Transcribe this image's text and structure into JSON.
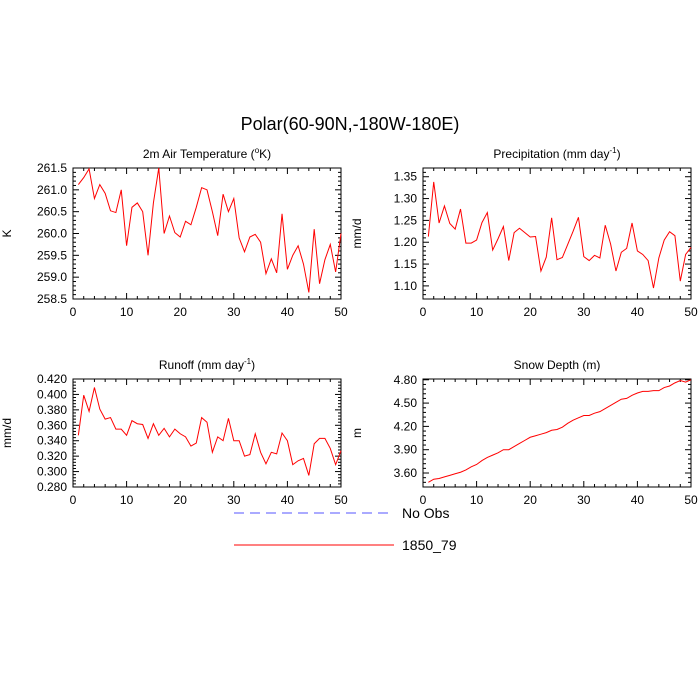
{
  "figure": {
    "title": "Polar(60-90N,-180W-180E)",
    "colors": {
      "series": "#ff0000",
      "obs": "#5555ff",
      "axis": "#000000"
    }
  },
  "legend": [
    {
      "label": "No Obs",
      "style": "dashed",
      "color": "#5555ff"
    },
    {
      "label": "1850_79",
      "style": "solid",
      "color": "#ff0000"
    }
  ],
  "chart_data": [
    {
      "type": "line",
      "title": "2m Air Temperature (°K)",
      "title_parts": {
        "pre": "2m Air Temperature (",
        "sup": "o",
        "post": "K)"
      },
      "xlabel": "",
      "ylabel": "K",
      "xlim": [
        0,
        50
      ],
      "ylim": [
        258.5,
        261.5
      ],
      "xticks": [
        0,
        10,
        20,
        30,
        40,
        50
      ],
      "yticks": [
        "258.5",
        "259.0",
        "259.5",
        "260.0",
        "260.5",
        "261.0",
        "261.5"
      ],
      "series": [
        {
          "name": "1850_79",
          "x": [
            1,
            2,
            3,
            4,
            5,
            6,
            7,
            8,
            9,
            10,
            11,
            12,
            13,
            14,
            15,
            16,
            17,
            18,
            19,
            20,
            21,
            22,
            23,
            24,
            25,
            26,
            27,
            28,
            29,
            30,
            31,
            32,
            33,
            34,
            35,
            36,
            37,
            38,
            39,
            40,
            41,
            42,
            43,
            44,
            45,
            46,
            47,
            48,
            49,
            50
          ],
          "values": [
            261.12,
            261.28,
            261.48,
            260.8,
            261.12,
            260.92,
            260.52,
            260.48,
            261.0,
            259.72,
            260.6,
            260.7,
            260.5,
            259.5,
            260.7,
            261.5,
            260.0,
            260.4,
            260.02,
            259.92,
            260.28,
            260.2,
            260.6,
            261.05,
            261.0,
            260.5,
            259.95,
            260.9,
            260.5,
            260.8,
            259.9,
            259.58,
            259.92,
            259.98,
            259.8,
            259.08,
            259.42,
            259.1,
            260.45,
            259.18,
            259.5,
            259.72,
            259.3,
            258.65,
            260.1,
            258.85,
            259.4,
            259.75,
            259.12,
            260.0
          ]
        }
      ]
    },
    {
      "type": "line",
      "title": "Precipitation (mm day-1)",
      "title_parts": {
        "pre": "Precipitation (mm day",
        "sup": "-1",
        "post": ")"
      },
      "xlabel": "",
      "ylabel": "mm/d",
      "xlim": [
        0,
        50
      ],
      "ylim": [
        1.07,
        1.37
      ],
      "xticks": [
        0,
        10,
        20,
        30,
        40,
        50
      ],
      "yticks": [
        "1.10",
        "1.15",
        "1.20",
        "1.25",
        "1.30",
        "1.35"
      ],
      "series": [
        {
          "name": "1850_79",
          "x": [
            1,
            2,
            3,
            4,
            5,
            6,
            7,
            8,
            9,
            10,
            11,
            12,
            13,
            14,
            15,
            16,
            17,
            18,
            19,
            20,
            21,
            22,
            23,
            24,
            25,
            26,
            27,
            28,
            29,
            30,
            31,
            32,
            33,
            34,
            35,
            36,
            37,
            38,
            39,
            40,
            41,
            42,
            43,
            44,
            45,
            46,
            47,
            48,
            49,
            50
          ],
          "values": [
            1.213,
            1.338,
            1.244,
            1.283,
            1.243,
            1.23,
            1.276,
            1.198,
            1.198,
            1.205,
            1.245,
            1.268,
            1.182,
            1.208,
            1.236,
            1.158,
            1.222,
            1.232,
            1.222,
            1.212,
            1.213,
            1.134,
            1.166,
            1.256,
            1.16,
            1.165,
            1.195,
            1.225,
            1.257,
            1.167,
            1.158,
            1.17,
            1.164,
            1.239,
            1.196,
            1.134,
            1.177,
            1.186,
            1.244,
            1.18,
            1.172,
            1.158,
            1.095,
            1.164,
            1.205,
            1.224,
            1.215,
            1.111,
            1.172,
            1.188
          ]
        }
      ]
    },
    {
      "type": "line",
      "title": "Runoff (mm day-1)",
      "title_parts": {
        "pre": "Runoff (mm day",
        "sup": "-1",
        "post": ")"
      },
      "xlabel": "",
      "ylabel": "mm/d",
      "xlim": [
        0,
        50
      ],
      "ylim": [
        0.28,
        0.42
      ],
      "xticks": [
        0,
        10,
        20,
        30,
        40,
        50
      ],
      "yticks": [
        "0.280",
        "0.300",
        "0.320",
        "0.340",
        "0.360",
        "0.380",
        "0.400",
        "0.420"
      ],
      "series": [
        {
          "name": "1850_79",
          "x": [
            1,
            2,
            3,
            4,
            5,
            6,
            7,
            8,
            9,
            10,
            11,
            12,
            13,
            14,
            15,
            16,
            17,
            18,
            19,
            20,
            21,
            22,
            23,
            24,
            25,
            26,
            27,
            28,
            29,
            30,
            31,
            32,
            33,
            34,
            35,
            36,
            37,
            38,
            39,
            40,
            41,
            42,
            43,
            44,
            45,
            46,
            47,
            48,
            49,
            50
          ],
          "values": [
            0.347,
            0.399,
            0.378,
            0.409,
            0.381,
            0.368,
            0.37,
            0.355,
            0.355,
            0.347,
            0.366,
            0.362,
            0.361,
            0.343,
            0.362,
            0.347,
            0.356,
            0.345,
            0.355,
            0.349,
            0.345,
            0.333,
            0.337,
            0.37,
            0.364,
            0.325,
            0.345,
            0.34,
            0.369,
            0.34,
            0.34,
            0.32,
            0.322,
            0.349,
            0.325,
            0.31,
            0.325,
            0.323,
            0.35,
            0.34,
            0.309,
            0.314,
            0.317,
            0.295,
            0.336,
            0.343,
            0.343,
            0.33,
            0.309,
            0.327
          ]
        }
      ]
    },
    {
      "type": "line",
      "title": "Snow Depth (m)",
      "title_parts": {
        "pre": "Snow Depth (m)",
        "sup": "",
        "post": ""
      },
      "xlabel": "",
      "ylabel": "m",
      "xlim": [
        0,
        50
      ],
      "ylim": [
        3.42,
        4.81
      ],
      "xticks": [
        0,
        10,
        20,
        30,
        40,
        50
      ],
      "yticks": [
        "3.60",
        "3.90",
        "4.20",
        "4.50",
        "4.80"
      ],
      "series": [
        {
          "name": "1850_79",
          "x": [
            1,
            2,
            3,
            4,
            5,
            6,
            7,
            8,
            9,
            10,
            11,
            12,
            13,
            14,
            15,
            16,
            17,
            18,
            19,
            20,
            21,
            22,
            23,
            24,
            25,
            26,
            27,
            28,
            29,
            30,
            31,
            32,
            33,
            34,
            35,
            36,
            37,
            38,
            39,
            40,
            41,
            42,
            43,
            44,
            45,
            46,
            47,
            48,
            49,
            50
          ],
          "values": [
            3.48,
            3.52,
            3.53,
            3.55,
            3.57,
            3.59,
            3.61,
            3.64,
            3.68,
            3.71,
            3.76,
            3.8,
            3.83,
            3.86,
            3.9,
            3.9,
            3.94,
            3.98,
            4.02,
            4.06,
            4.08,
            4.1,
            4.12,
            4.15,
            4.16,
            4.19,
            4.24,
            4.28,
            4.31,
            4.34,
            4.34,
            4.37,
            4.39,
            4.43,
            4.47,
            4.51,
            4.55,
            4.56,
            4.6,
            4.63,
            4.65,
            4.65,
            4.66,
            4.66,
            4.7,
            4.72,
            4.76,
            4.79,
            4.77,
            4.8
          ]
        }
      ]
    }
  ]
}
